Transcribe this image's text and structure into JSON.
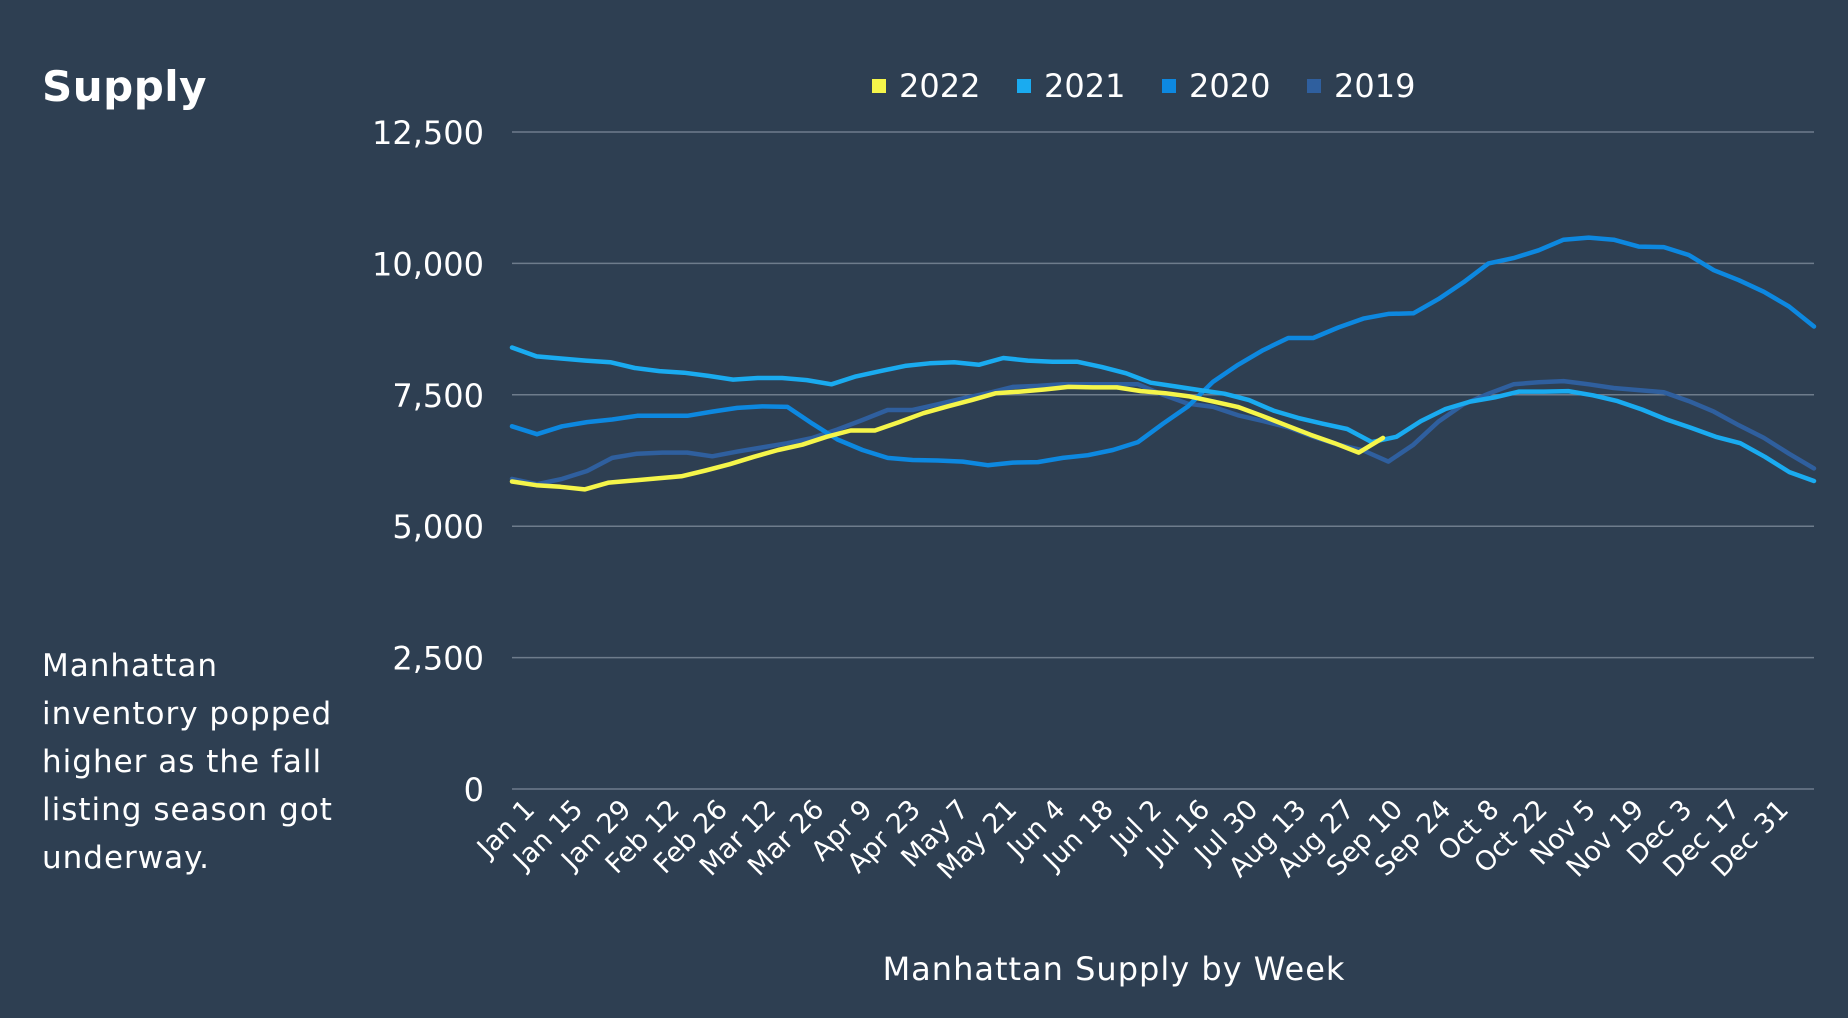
{
  "panel": {
    "title": "Supply",
    "note": "Manhattan inventory popped higher as the fall listing season got underway."
  },
  "chart_data": {
    "type": "line",
    "xlabel": "Manhattan Supply by Week",
    "ylabel": "",
    "ylim": [
      0,
      12500
    ],
    "yticks": [
      "0",
      "2,500",
      "5,000",
      "7,500",
      "10,000",
      "12,500"
    ],
    "x_tick_labels": [
      "Jan 1",
      "Jan 15",
      "Jan 29",
      "Feb 12",
      "Feb 26",
      "Mar 12",
      "Mar 26",
      "Apr 9",
      "Apr 23",
      "May 7",
      "May 21",
      "Jun 4",
      "Jun 18",
      "Jul 2",
      "Jul 16",
      "Jul 30",
      "Aug 13",
      "Aug 27",
      "Sep 10",
      "Sep 24",
      "Oct 8",
      "Oct 22",
      "Nov 5",
      "Nov 19",
      "Dec 3",
      "Dec 17",
      "Dec 31"
    ],
    "grid": true,
    "legend_position": "top",
    "series": [
      {
        "name": "2022",
        "color": "#f5f54a",
        "values": [
          5850,
          5780,
          5750,
          5700,
          5830,
          5870,
          5910,
          5950,
          6060,
          6180,
          6320,
          6450,
          6550,
          6700,
          6820,
          6820,
          6980,
          7150,
          7280,
          7400,
          7530,
          7560,
          7600,
          7650,
          7640,
          7640,
          7570,
          7530,
          7470,
          7370,
          7270,
          7100,
          6920,
          6740,
          6580,
          6400,
          6680
        ]
      },
      {
        "name": "2021",
        "color": "#1aabf0",
        "values": [
          8400,
          8230,
          8190,
          8150,
          8120,
          8010,
          7950,
          7920,
          7860,
          7790,
          7820,
          7820,
          7780,
          7700,
          7850,
          7950,
          8050,
          8100,
          8120,
          8070,
          8200,
          8150,
          8130,
          8130,
          8030,
          7910,
          7730,
          7660,
          7590,
          7520,
          7400,
          7200,
          7060,
          6950,
          6850,
          6600,
          6700,
          7000,
          7230,
          7370,
          7450,
          7560,
          7560,
          7570,
          7490,
          7380,
          7220,
          7030,
          6870,
          6700,
          6580,
          6320,
          6030,
          5860
        ]
      },
      {
        "name": "2020",
        "color": "#0d88e0",
        "values": [
          6900,
          6750,
          6900,
          6980,
          7030,
          7100,
          7100,
          7100,
          7180,
          7250,
          7280,
          7270,
          6950,
          6650,
          6450,
          6300,
          6260,
          6250,
          6230,
          6160,
          6210,
          6220,
          6300,
          6350,
          6450,
          6600,
          6950,
          7280,
          7750,
          8070,
          8350,
          8580,
          8580,
          8780,
          8950,
          9040,
          9050,
          9320,
          9640,
          10000,
          10100,
          10250,
          10450,
          10490,
          10450,
          10320,
          10310,
          10160,
          9870,
          9680,
          9460,
          9180,
          8800
        ]
      },
      {
        "name": "2019",
        "color": "#2f5f9e",
        "values": [
          5900,
          5800,
          5900,
          6050,
          6300,
          6380,
          6400,
          6400,
          6330,
          6420,
          6500,
          6580,
          6680,
          6840,
          7020,
          7210,
          7210,
          7320,
          7430,
          7530,
          7650,
          7670,
          7700,
          7700,
          7700,
          7700,
          7500,
          7330,
          7270,
          7110,
          7000,
          6880,
          6700,
          6550,
          6440,
          6230,
          6550,
          6990,
          7320,
          7520,
          7700,
          7740,
          7760,
          7700,
          7630,
          7590,
          7550,
          7380,
          7180,
          6920,
          6680,
          6380,
          6100
        ]
      }
    ]
  }
}
